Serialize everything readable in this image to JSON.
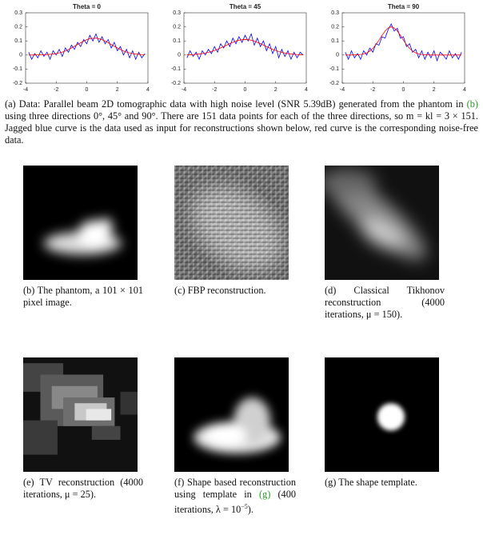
{
  "chart_data": [
    {
      "type": "line",
      "title": "Theta = 0",
      "x": [
        -3.8,
        -3.6,
        -3.4,
        -3.2,
        -3.0,
        -2.8,
        -2.6,
        -2.4,
        -2.2,
        -2.0,
        -1.8,
        -1.6,
        -1.4,
        -1.2,
        -1.0,
        -0.8,
        -0.6,
        -0.4,
        -0.2,
        0,
        0.2,
        0.4,
        0.6,
        0.8,
        1.0,
        1.2,
        1.4,
        1.6,
        1.8,
        2.0,
        2.2,
        2.4,
        2.6,
        2.8,
        3.0,
        3.2,
        3.4,
        3.6,
        3.8
      ],
      "series": [
        {
          "color": "#0000ff",
          "values": [
            0.02,
            -0.03,
            0.01,
            -0.02,
            0.03,
            -0.01,
            0.02,
            -0.03,
            0.03,
            0.0,
            0.04,
            -0.01,
            0.05,
            0.02,
            0.07,
            0.04,
            0.09,
            0.06,
            0.11,
            0.08,
            0.14,
            0.1,
            0.15,
            0.09,
            0.13,
            0.08,
            0.11,
            0.05,
            0.09,
            0.03,
            0.06,
            0.0,
            0.04,
            -0.02,
            0.03,
            -0.03,
            0.02,
            -0.02,
            0.01
          ]
        },
        {
          "color": "#ff0000",
          "values": [
            0,
            0,
            0.001,
            0.001,
            0.001,
            0.002,
            0.003,
            0.005,
            0.007,
            0.01,
            0.015,
            0.021,
            0.029,
            0.039,
            0.05,
            0.062,
            0.075,
            0.087,
            0.099,
            0.109,
            0.116,
            0.119,
            0.12,
            0.116,
            0.109,
            0.099,
            0.087,
            0.075,
            0.062,
            0.05,
            0.039,
            0.029,
            0.021,
            0.015,
            0.01,
            0.007,
            0.005,
            0.003,
            0.002
          ]
        }
      ],
      "xlim": [
        -4,
        4
      ],
      "ylim": [
        -0.2,
        0.3
      ],
      "xticks": [
        -4,
        -2,
        0,
        2,
        4
      ],
      "yticks": [
        -0.2,
        -0.1,
        0,
        0.1,
        0.2,
        0.3
      ]
    },
    {
      "type": "line",
      "title": "Theta = 45",
      "x": [
        -3.8,
        -3.6,
        -3.4,
        -3.2,
        -3.0,
        -2.8,
        -2.6,
        -2.4,
        -2.2,
        -2.0,
        -1.8,
        -1.6,
        -1.4,
        -1.2,
        -1.0,
        -0.8,
        -0.6,
        -0.4,
        -0.2,
        0,
        0.2,
        0.4,
        0.6,
        0.8,
        1.0,
        1.2,
        1.4,
        1.6,
        1.8,
        2.0,
        2.2,
        2.4,
        2.6,
        2.8,
        3.0,
        3.2,
        3.4,
        3.6,
        3.8
      ],
      "series": [
        {
          "color": "#0000ff",
          "values": [
            -0.02,
            0.03,
            -0.01,
            0.02,
            -0.03,
            0.03,
            0.0,
            0.04,
            0.01,
            0.06,
            0.02,
            0.08,
            0.05,
            0.1,
            0.06,
            0.12,
            0.08,
            0.13,
            0.09,
            0.14,
            0.1,
            0.15,
            0.07,
            0.12,
            0.06,
            0.1,
            0.03,
            0.08,
            0.01,
            0.06,
            -0.02,
            0.04,
            -0.01,
            0.03,
            -0.03,
            0.02,
            -0.02,
            0.02,
            0.0
          ]
        },
        {
          "color": "#ff0000",
          "values": [
            0.001,
            0.002,
            0.003,
            0.005,
            0.007,
            0.01,
            0.014,
            0.019,
            0.025,
            0.032,
            0.04,
            0.05,
            0.06,
            0.07,
            0.081,
            0.09,
            0.099,
            0.105,
            0.109,
            0.11,
            0.109,
            0.105,
            0.099,
            0.09,
            0.081,
            0.07,
            0.06,
            0.05,
            0.04,
            0.032,
            0.025,
            0.019,
            0.014,
            0.01,
            0.007,
            0.005,
            0.003,
            0.002,
            0.001
          ]
        }
      ],
      "xlim": [
        -4,
        4
      ],
      "ylim": [
        -0.2,
        0.3
      ],
      "xticks": [
        -4,
        -2,
        0,
        2,
        4
      ],
      "yticks": [
        -0.2,
        -0.1,
        0,
        0.1,
        0.2,
        0.3
      ]
    },
    {
      "type": "line",
      "title": "Theta = 90",
      "x": [
        -3.8,
        -3.6,
        -3.4,
        -3.2,
        -3.0,
        -2.8,
        -2.6,
        -2.4,
        -2.2,
        -2.0,
        -1.8,
        -1.6,
        -1.4,
        -1.2,
        -1.0,
        -0.8,
        -0.6,
        -0.4,
        -0.2,
        0,
        0.2,
        0.4,
        0.6,
        0.8,
        1.0,
        1.2,
        1.4,
        1.6,
        1.8,
        2.0,
        2.2,
        2.4,
        2.6,
        2.8,
        3.0,
        3.2,
        3.4,
        3.6,
        3.8
      ],
      "series": [
        {
          "color": "#0000ff",
          "values": [
            0.02,
            -0.03,
            0.03,
            -0.02,
            0.01,
            -0.03,
            0.03,
            0.0,
            0.05,
            0.02,
            0.08,
            0.07,
            0.13,
            0.12,
            0.18,
            0.22,
            0.17,
            0.19,
            0.12,
            0.13,
            0.06,
            0.08,
            0.02,
            0.04,
            -0.02,
            0.03,
            -0.03,
            0.02,
            -0.02,
            0.03,
            -0.04,
            0.02,
            0.0,
            -0.03,
            0.03,
            -0.02,
            0.01,
            -0.03,
            0.02
          ]
        },
        {
          "color": "#ff0000",
          "values": [
            0,
            0,
            0,
            0.001,
            0.002,
            0.004,
            0.008,
            0.015,
            0.028,
            0.047,
            0.074,
            0.105,
            0.14,
            0.17,
            0.192,
            0.2,
            0.192,
            0.17,
            0.14,
            0.105,
            0.074,
            0.047,
            0.028,
            0.015,
            0.008,
            0.004,
            0.002,
            0.001,
            0,
            0,
            0,
            0,
            0,
            0,
            0,
            0,
            0,
            0,
            0
          ]
        }
      ],
      "xlim": [
        -4,
        4
      ],
      "ylim": [
        -0.2,
        0.3
      ],
      "xticks": [
        -4,
        -2,
        0,
        2,
        4
      ],
      "yticks": [
        -0.2,
        -0.1,
        0,
        0.1,
        0.2,
        0.3
      ]
    }
  ],
  "captions": {
    "a": [
      "(a) Data: Parallel beam 2D tomographic data with high noise level (SNR 5.39dB) generated from the phantom in ",
      "(b)",
      " using three directions 0°, 45° and 90°. There are 151 data points for each of the three directions, so m = kl = 3 × 151. Jagged blue curve is the data used as input for reconstructions shown below, red curve is the corresponding noise-free data."
    ],
    "b": "(b) The phantom, a 101 × 101 pixel image.",
    "c": "(c) FBP reconstruction.",
    "d": "(d) Classical Tikhonov reconstruction (4000 iterations, μ = 150).",
    "e": "(e) TV reconstruction (4000 iterations, μ = 25).",
    "f": [
      "(f) Shape based reconstruction using template in ",
      "(g)",
      " (400 iterations, λ = 10",
      "−5",
      ")."
    ],
    "g": "(g) The shape template."
  }
}
